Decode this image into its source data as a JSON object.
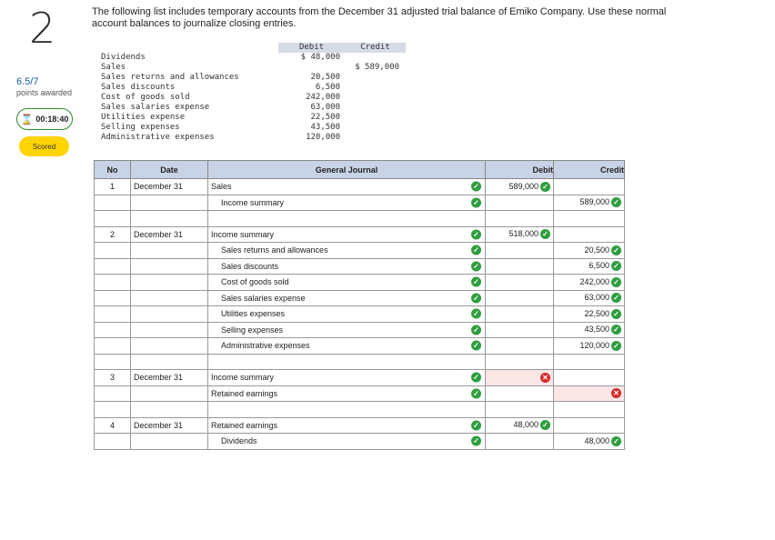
{
  "question": {
    "number": "2",
    "score": "6.5/7",
    "score_label": "points awarded",
    "timer": "00:18:40",
    "status": "Scored"
  },
  "prompt": "The following list includes temporary accounts from the December 31 adjusted trial balance of Emiko Company. Use these normal account balances to journalize closing entries.",
  "trial_balance": {
    "debit_header": "Debit",
    "credit_header": "Credit",
    "rows": [
      {
        "account": "Dividends",
        "debit": "$ 48,000",
        "credit": ""
      },
      {
        "account": "Sales",
        "debit": "",
        "credit": "$ 589,000"
      },
      {
        "account": "Sales returns and allowances",
        "debit": "20,500",
        "credit": ""
      },
      {
        "account": "Sales discounts",
        "debit": "6,500",
        "credit": ""
      },
      {
        "account": "Cost of goods sold",
        "debit": "242,000",
        "credit": ""
      },
      {
        "account": "Sales salaries expense",
        "debit": "63,000",
        "credit": ""
      },
      {
        "account": "Utilities expense",
        "debit": "22,500",
        "credit": ""
      },
      {
        "account": "Selling expenses",
        "debit": "43,500",
        "credit": ""
      },
      {
        "account": "Administrative expenses",
        "debit": "120,000",
        "credit": ""
      }
    ]
  },
  "journal": {
    "headers": {
      "no": "No",
      "date": "Date",
      "account": "General Journal",
      "debit": "Debit",
      "credit": "Credit"
    },
    "rows": [
      {
        "no": "1",
        "date": "December 31",
        "account": "Sales",
        "indent": false,
        "debit": "589,000",
        "credit": "",
        "acct_ok": true,
        "debit_status": "ok",
        "credit_status": ""
      },
      {
        "no": "",
        "date": "",
        "account": "Income summary",
        "indent": true,
        "debit": "",
        "credit": "589,000",
        "acct_ok": true,
        "debit_status": "",
        "credit_status": "ok"
      },
      {
        "spacer": true
      },
      {
        "no": "2",
        "date": "December 31",
        "account": "Income summary",
        "indent": false,
        "debit": "518,000",
        "credit": "",
        "acct_ok": true,
        "debit_status": "ok",
        "credit_status": ""
      },
      {
        "no": "",
        "date": "",
        "account": "Sales returns and allowances",
        "indent": true,
        "debit": "",
        "credit": "20,500",
        "acct_ok": true,
        "debit_status": "",
        "credit_status": "ok"
      },
      {
        "no": "",
        "date": "",
        "account": "Sales discounts",
        "indent": true,
        "debit": "",
        "credit": "6,500",
        "acct_ok": true,
        "debit_status": "",
        "credit_status": "ok"
      },
      {
        "no": "",
        "date": "",
        "account": "Cost of goods sold",
        "indent": true,
        "debit": "",
        "credit": "242,000",
        "acct_ok": true,
        "debit_status": "",
        "credit_status": "ok"
      },
      {
        "no": "",
        "date": "",
        "account": "Sales salaries expense",
        "indent": true,
        "debit": "",
        "credit": "63,000",
        "acct_ok": true,
        "debit_status": "",
        "credit_status": "ok"
      },
      {
        "no": "",
        "date": "",
        "account": "Utilities expenses",
        "indent": true,
        "debit": "",
        "credit": "22,500",
        "acct_ok": true,
        "debit_status": "",
        "credit_status": "ok"
      },
      {
        "no": "",
        "date": "",
        "account": "Selling expenses",
        "indent": true,
        "debit": "",
        "credit": "43,500",
        "acct_ok": true,
        "debit_status": "",
        "credit_status": "ok"
      },
      {
        "no": "",
        "date": "",
        "account": "Administrative expenses",
        "indent": true,
        "debit": "",
        "credit": "120,000",
        "acct_ok": true,
        "debit_status": "",
        "credit_status": "ok"
      },
      {
        "spacer": true
      },
      {
        "no": "3",
        "date": "December 31",
        "account": "Income summary",
        "indent": false,
        "debit": "",
        "credit": "",
        "acct_ok": true,
        "debit_status": "bad",
        "credit_status": ""
      },
      {
        "no": "",
        "date": "",
        "account": "Retained earnings",
        "indent": false,
        "debit": "",
        "credit": "",
        "acct_ok": true,
        "debit_status": "",
        "credit_status": "bad"
      },
      {
        "spacer": true
      },
      {
        "no": "4",
        "date": "December 31",
        "account": "Retained earnings",
        "indent": false,
        "debit": "48,000",
        "credit": "",
        "acct_ok": true,
        "debit_status": "ok",
        "credit_status": ""
      },
      {
        "no": "",
        "date": "",
        "account": "Dividends",
        "indent": true,
        "debit": "",
        "credit": "48,000",
        "acct_ok": true,
        "debit_status": "",
        "credit_status": "ok"
      }
    ]
  }
}
